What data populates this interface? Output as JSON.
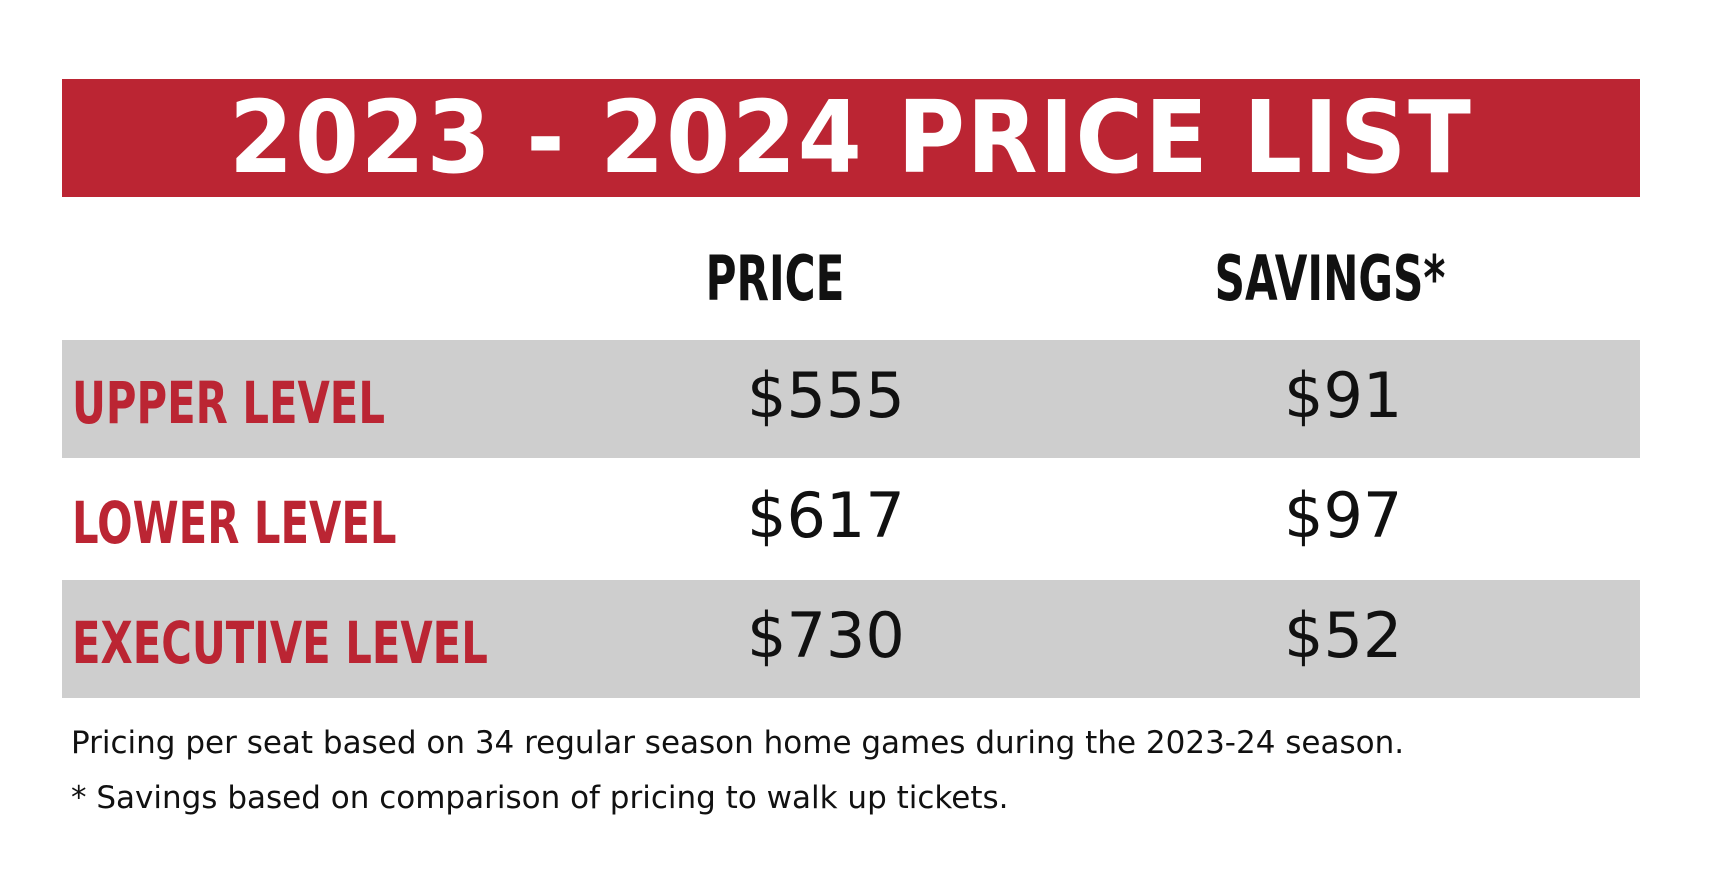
{
  "title": "2023 - 2024  PRICE LIST",
  "columns": {
    "price": "PRICE",
    "savings": "SAVINGS*"
  },
  "rows": [
    {
      "label": "UPPER LEVEL",
      "price": "$555",
      "savings": "$91",
      "shaded": true
    },
    {
      "label": "LOWER LEVEL",
      "price": "$617",
      "savings": "$97",
      "shaded": false
    },
    {
      "label": "EXECUTIVE LEVEL",
      "price": "$730",
      "savings": "$52",
      "shaded": true
    }
  ],
  "footnotes": [
    "Pricing per seat based on 34 regular season home games during the 2023-24 season.",
    "* Savings based on comparison of pricing to walk up tickets."
  ],
  "colors": {
    "accent_red": "#bb2533",
    "row_shade": "#cecece",
    "text": "#111111"
  }
}
